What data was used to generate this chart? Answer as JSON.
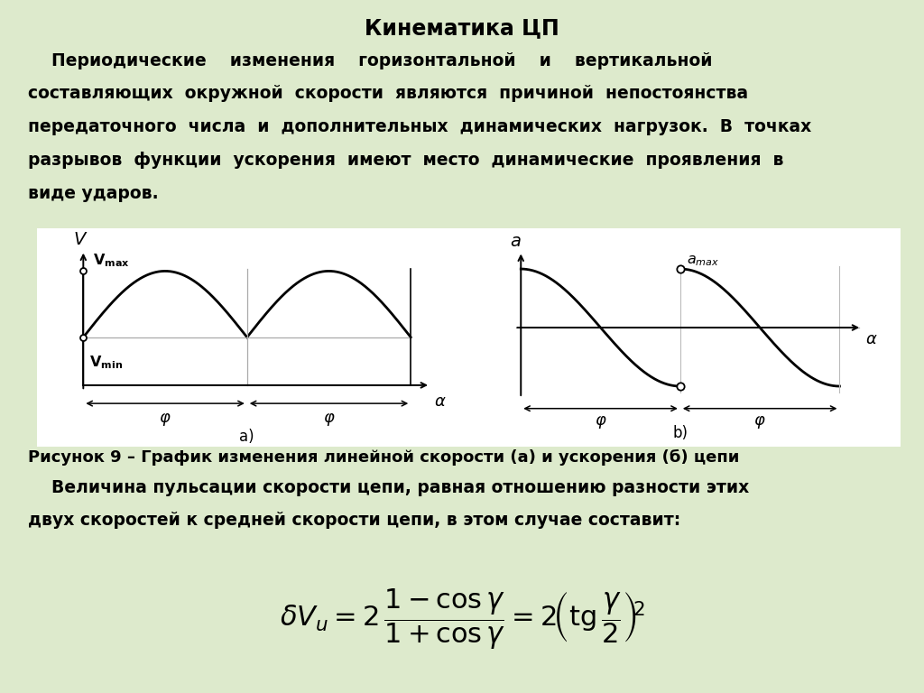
{
  "title": "Кинематика ЦП",
  "bg_color": "#ddeacc",
  "plot_bg": "#ffffff",
  "text_color": "#000000",
  "title_fontsize": 17,
  "body_fontsize": 13.5,
  "caption_fontsize": 13,
  "para1_lines": [
    "    Периодические    изменения    горизонтальной    и    вертикальной",
    "составляющих  окружной  скорости  являются  причиной  непостоянства",
    "передаточного  числа  и  дополнительных  динамических  нагрузок.  В  точках",
    "разрывов  функции  ускорения  имеют  место  динамические  проявления  в",
    "виде ударов."
  ],
  "para2_lines": [
    "    Величина пульсации скорости цепи, равная отношению разности этих",
    "двух скоростей к средней скорости цепи, в этом случае составит:"
  ],
  "caption_text": "Рисунок 9 – График изменения линейной скорости (а) и ускорения (б) цепи",
  "Vmin": 0.42,
  "Vmax": 1.0,
  "amax": 1.0,
  "phi": 3.14159
}
